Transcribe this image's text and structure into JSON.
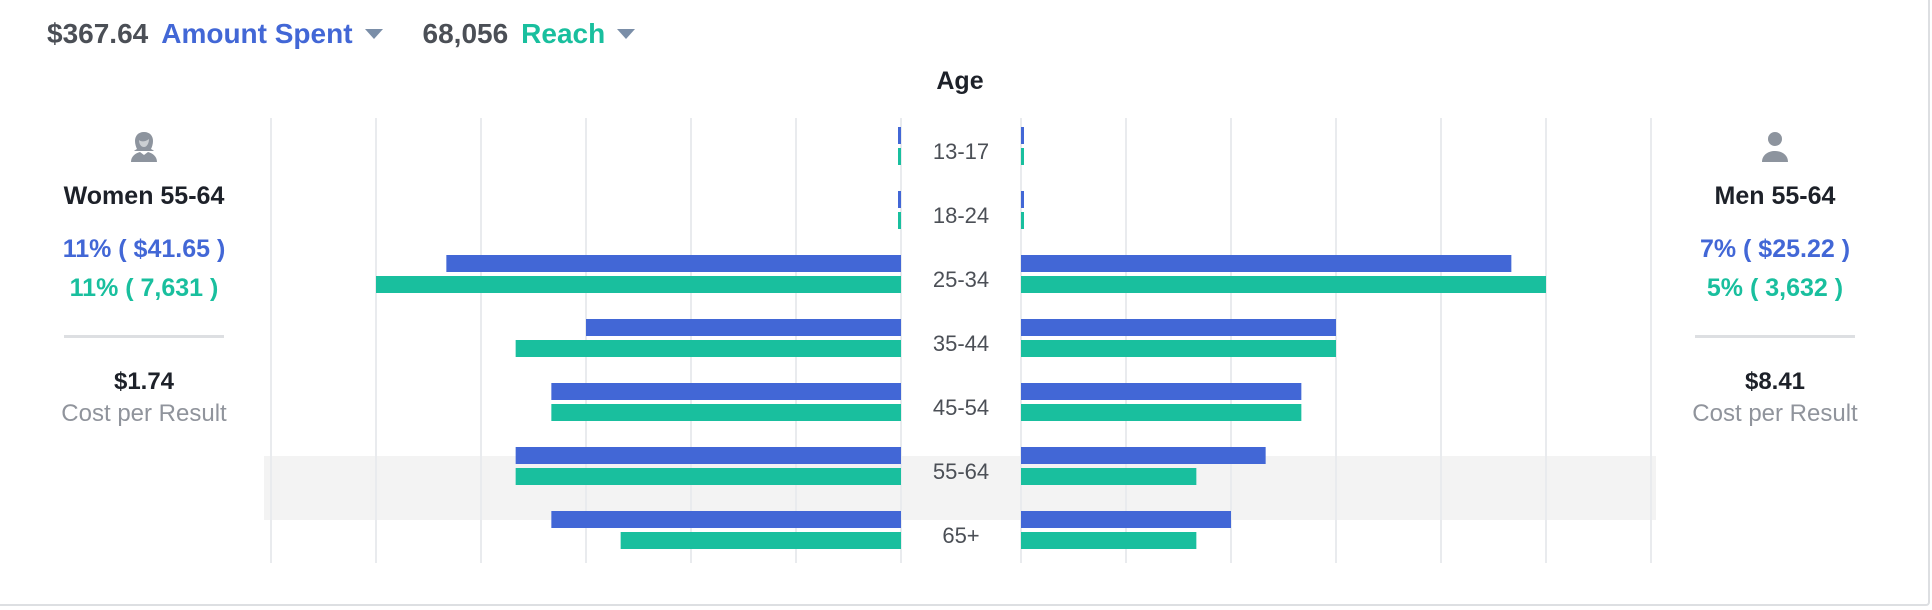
{
  "header": {
    "metrics": [
      {
        "value": "$367.64",
        "label": "Amount Spent",
        "color": "#4267d6"
      },
      {
        "value": "68,056",
        "label": "Reach",
        "color": "#19bf9e"
      }
    ]
  },
  "chart_title": "Age",
  "women": {
    "icon": "woman-avatar-icon",
    "title": "Women 55-64",
    "spend_pct": "11% ( $41.65 )",
    "reach_pct": "11% ( 7,631 )",
    "cost_value": "$1.74",
    "cost_label": "Cost per Result"
  },
  "men": {
    "icon": "man-avatar-icon",
    "title": "Men 55-64",
    "spend_pct": "7% ( $25.22 )",
    "reach_pct": "5% ( 3,632 )",
    "cost_value": "$8.41",
    "cost_label": "Cost per Result"
  },
  "colors": {
    "amount_spent": "#4267d6",
    "reach": "#19bf9e",
    "highlight_row": "#f3f3f3",
    "gridline": "#e9ebee",
    "text": "#1d2129",
    "muted": "#90949c"
  },
  "chart_data": {
    "type": "bar",
    "orientation": "horizontal-butterfly",
    "title": "Age",
    "categories": [
      "13-17",
      "18-24",
      "25-34",
      "35-44",
      "45-54",
      "55-64",
      "65+"
    ],
    "highlighted_category": "55-64",
    "x_range": [
      0,
      6
    ],
    "grid": true,
    "series": [
      {
        "name": "Amount Spent",
        "side": "women",
        "values": [
          0.02,
          0.02,
          4.33,
          3.0,
          3.33,
          3.67,
          3.33
        ]
      },
      {
        "name": "Reach",
        "side": "women",
        "values": [
          0.02,
          0.02,
          5.0,
          3.67,
          3.33,
          3.67,
          2.67
        ]
      },
      {
        "name": "Amount Spent",
        "side": "men",
        "values": [
          0.02,
          0.02,
          4.67,
          3.0,
          2.67,
          2.33,
          2.0
        ]
      },
      {
        "name": "Reach",
        "side": "men",
        "values": [
          0.02,
          0.02,
          5.0,
          3.0,
          2.67,
          1.67,
          1.67
        ]
      }
    ]
  }
}
